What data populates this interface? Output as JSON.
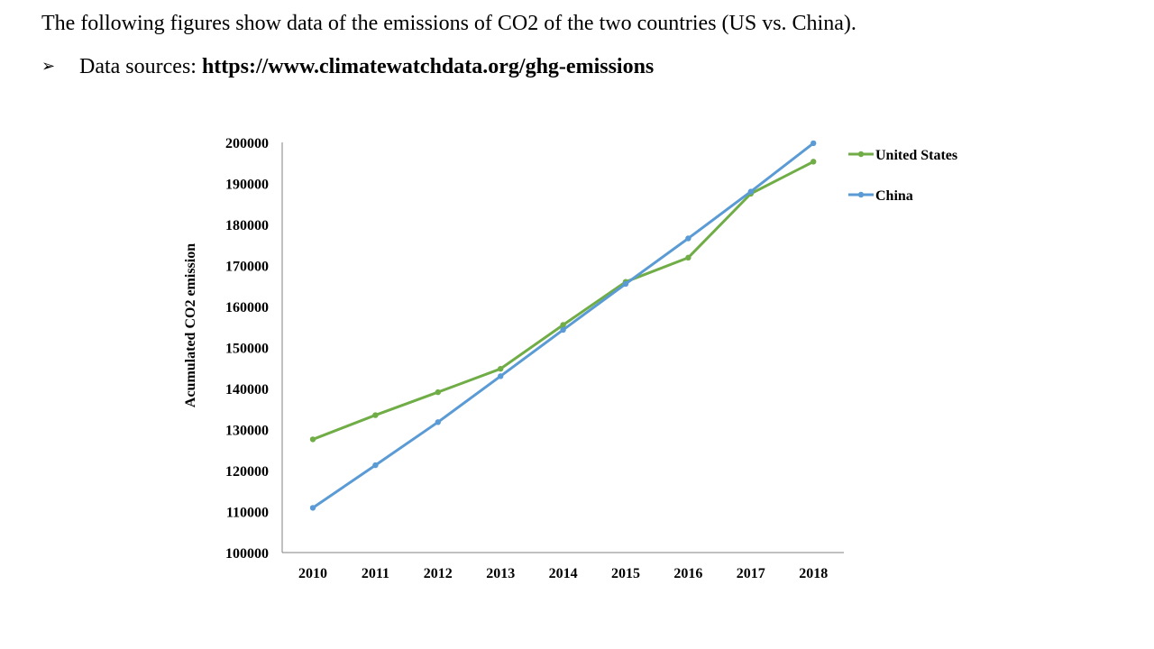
{
  "slide": {
    "intro_text": "The following figures  show data of the emissions of CO2 of the two countries (US vs.  China).",
    "source_prefix": "Data sources: ",
    "source_url": "https://www.climatewatchdata.org/ghg-emissions"
  },
  "chart_data": {
    "type": "line",
    "title": "",
    "xlabel": "",
    "ylabel": "Acumulated CO2 emission",
    "categories": [
      "2010",
      "2011",
      "2012",
      "2013",
      "2014",
      "2015",
      "2016",
      "2017",
      "2018"
    ],
    "ylim": [
      100000,
      200000
    ],
    "yticks": [
      100000,
      110000,
      120000,
      130000,
      140000,
      150000,
      160000,
      170000,
      180000,
      190000,
      200000
    ],
    "grid": false,
    "legend_position": "right",
    "series": [
      {
        "name": "United States",
        "color": "#70AD47",
        "values": [
          127600,
          133500,
          139100,
          144800,
          155500,
          166000,
          171900,
          187500,
          195300
        ]
      },
      {
        "name": "China",
        "color": "#5B9BD5",
        "values": [
          110900,
          121300,
          131800,
          143000,
          154300,
          165500,
          176600,
          188000,
          199800
        ]
      }
    ]
  }
}
